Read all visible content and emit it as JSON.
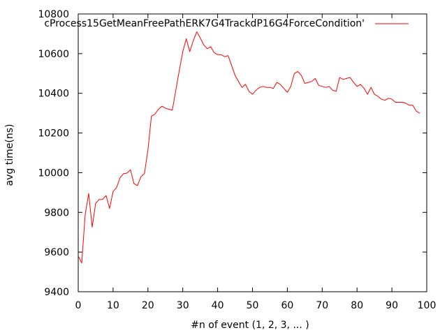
{
  "chart_data": {
    "type": "line",
    "xlabel": "#n of event (1, 2, 3, ... )",
    "ylabel": "avg time(ns)",
    "xlim": [
      0,
      100
    ],
    "ylim": [
      9400,
      10800
    ],
    "xticks": [
      0,
      10,
      20,
      30,
      40,
      50,
      60,
      70,
      80,
      90,
      100
    ],
    "yticks": [
      9400,
      9600,
      9800,
      10000,
      10200,
      10400,
      10600,
      10800
    ],
    "grid": false,
    "legend_position": "top-right",
    "series": [
      {
        "name": "cProcess15GetMeanFreePathERK7G4TrackdP16G4ForceCondition'",
        "color": "#ff0000",
        "x": [
          0,
          1,
          2,
          3,
          4,
          5,
          6,
          7,
          8,
          9,
          10,
          11,
          12,
          13,
          14,
          15,
          16,
          17,
          18,
          19,
          20,
          21,
          22,
          23,
          24,
          25,
          26,
          27,
          28,
          29,
          30,
          31,
          32,
          33,
          34,
          35,
          36,
          37,
          38,
          39,
          40,
          41,
          42,
          43,
          44,
          45,
          46,
          47,
          48,
          49,
          50,
          51,
          52,
          53,
          54,
          55,
          56,
          57,
          58,
          59,
          60,
          61,
          62,
          63,
          64,
          65,
          66,
          67,
          68,
          69,
          70,
          71,
          72,
          73,
          74,
          75,
          76,
          77,
          78,
          79,
          80,
          81,
          82,
          83,
          84,
          85,
          86,
          87,
          88,
          89,
          90,
          91,
          92,
          93,
          94,
          95,
          96,
          97,
          98
        ],
        "y": [
          9580,
          9545,
          9790,
          9895,
          9725,
          9845,
          9865,
          9865,
          9885,
          9820,
          9905,
          9925,
          9975,
          9995,
          9998,
          10015,
          9945,
          9935,
          9980,
          9995,
          10115,
          10285,
          10295,
          10320,
          10335,
          10325,
          10320,
          10315,
          10415,
          10515,
          10610,
          10675,
          10610,
          10665,
          10710,
          10680,
          10645,
          10625,
          10635,
          10605,
          10595,
          10595,
          10585,
          10590,
          10540,
          10490,
          10460,
          10430,
          10445,
          10410,
          10395,
          10415,
          10430,
          10435,
          10430,
          10430,
          10425,
          10455,
          10445,
          10425,
          10405,
          10435,
          10500,
          10510,
          10490,
          10450,
          10455,
          10460,
          10475,
          10440,
          10435,
          10430,
          10435,
          10415,
          10410,
          10480,
          10470,
          10475,
          10480,
          10455,
          10435,
          10445,
          10425,
          10395,
          10430,
          10395,
          10385,
          10370,
          10365,
          10375,
          10370,
          10355,
          10355,
          10355,
          10350,
          10340,
          10340,
          10310,
          10300
        ]
      }
    ]
  }
}
